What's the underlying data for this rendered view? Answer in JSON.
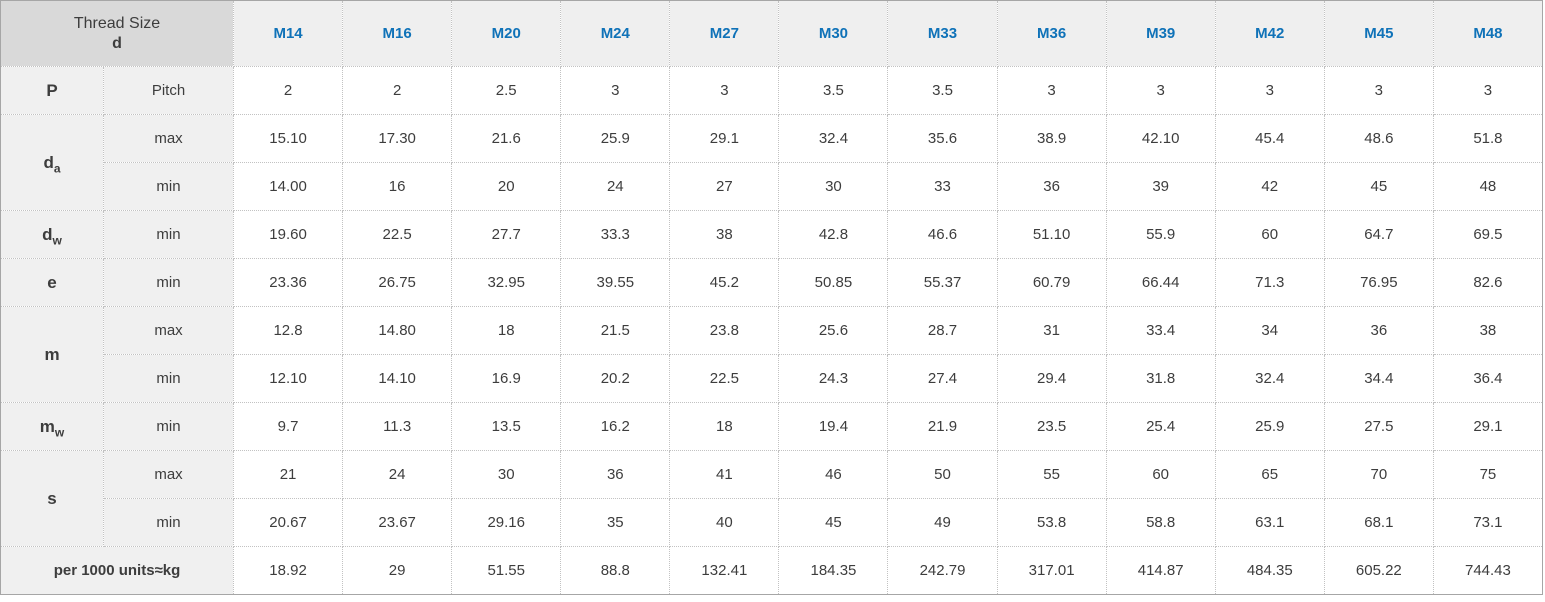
{
  "colors": {
    "accent_blue": "#0f72b8",
    "corner_header_bg": "#d9d9d9",
    "column_header_bg": "#efefef",
    "row_label_bg": "#f0f0f0",
    "cell_bg": "#ffffff",
    "text": "#3d3d3d",
    "inner_border": "#c2c2c2",
    "outer_border": "#a6a6a6"
  },
  "table": {
    "corner": {
      "line1": "Thread Size",
      "line2": "d"
    },
    "columns": [
      "M14",
      "M16",
      "M20",
      "M24",
      "M27",
      "M30",
      "M33",
      "M36",
      "M39",
      "M42",
      "M45",
      "M48"
    ],
    "row_groups": [
      {
        "id": "P",
        "label": {
          "base": "P",
          "sub": ""
        },
        "rows": [
          {
            "sublabel": "Pitch",
            "values": [
              "2",
              "2",
              "2.5",
              "3",
              "3",
              "3.5",
              "3.5",
              "3",
              "3",
              "3",
              "3",
              "3"
            ]
          }
        ]
      },
      {
        "id": "da",
        "label": {
          "base": "d",
          "sub": "a"
        },
        "rows": [
          {
            "sublabel": "max",
            "values": [
              "15.10",
              "17.30",
              "21.6",
              "25.9",
              "29.1",
              "32.4",
              "35.6",
              "38.9",
              "42.10",
              "45.4",
              "48.6",
              "51.8"
            ]
          },
          {
            "sublabel": "min",
            "values": [
              "14.00",
              "16",
              "20",
              "24",
              "27",
              "30",
              "33",
              "36",
              "39",
              "42",
              "45",
              "48"
            ]
          }
        ]
      },
      {
        "id": "dw",
        "label": {
          "base": "d",
          "sub": "w"
        },
        "rows": [
          {
            "sublabel": "min",
            "values": [
              "19.60",
              "22.5",
              "27.7",
              "33.3",
              "38",
              "42.8",
              "46.6",
              "51.10",
              "55.9",
              "60",
              "64.7",
              "69.5"
            ]
          }
        ]
      },
      {
        "id": "e",
        "label": {
          "base": "e",
          "sub": ""
        },
        "rows": [
          {
            "sublabel": "min",
            "values": [
              "23.36",
              "26.75",
              "32.95",
              "39.55",
              "45.2",
              "50.85",
              "55.37",
              "60.79",
              "66.44",
              "71.3",
              "76.95",
              "82.6"
            ]
          }
        ]
      },
      {
        "id": "m",
        "label": {
          "base": "m",
          "sub": ""
        },
        "rows": [
          {
            "sublabel": "max",
            "values": [
              "12.8",
              "14.80",
              "18",
              "21.5",
              "23.8",
              "25.6",
              "28.7",
              "31",
              "33.4",
              "34",
              "36",
              "38"
            ]
          },
          {
            "sublabel": "min",
            "values": [
              "12.10",
              "14.10",
              "16.9",
              "20.2",
              "22.5",
              "24.3",
              "27.4",
              "29.4",
              "31.8",
              "32.4",
              "34.4",
              "36.4"
            ]
          }
        ]
      },
      {
        "id": "mw",
        "label": {
          "base": "m",
          "sub": "w"
        },
        "rows": [
          {
            "sublabel": "min",
            "values": [
              "9.7",
              "11.3",
              "13.5",
              "16.2",
              "18",
              "19.4",
              "21.9",
              "23.5",
              "25.4",
              "25.9",
              "27.5",
              "29.1"
            ]
          }
        ]
      },
      {
        "id": "s",
        "label": {
          "base": "s",
          "sub": ""
        },
        "rows": [
          {
            "sublabel": "max",
            "values": [
              "21",
              "24",
              "30",
              "36",
              "41",
              "46",
              "50",
              "55",
              "60",
              "65",
              "70",
              "75"
            ]
          },
          {
            "sublabel": "min",
            "values": [
              "20.67",
              "23.67",
              "29.16",
              "35",
              "40",
              "45",
              "49",
              "53.8",
              "58.8",
              "63.1",
              "68.1",
              "73.1"
            ]
          }
        ]
      }
    ],
    "footer": {
      "label": "per 1000 units≈kg",
      "values": [
        "18.92",
        "29",
        "51.55",
        "88.8",
        "132.41",
        "184.35",
        "242.79",
        "317.01",
        "414.87",
        "484.35",
        "605.22",
        "744.43"
      ]
    }
  }
}
